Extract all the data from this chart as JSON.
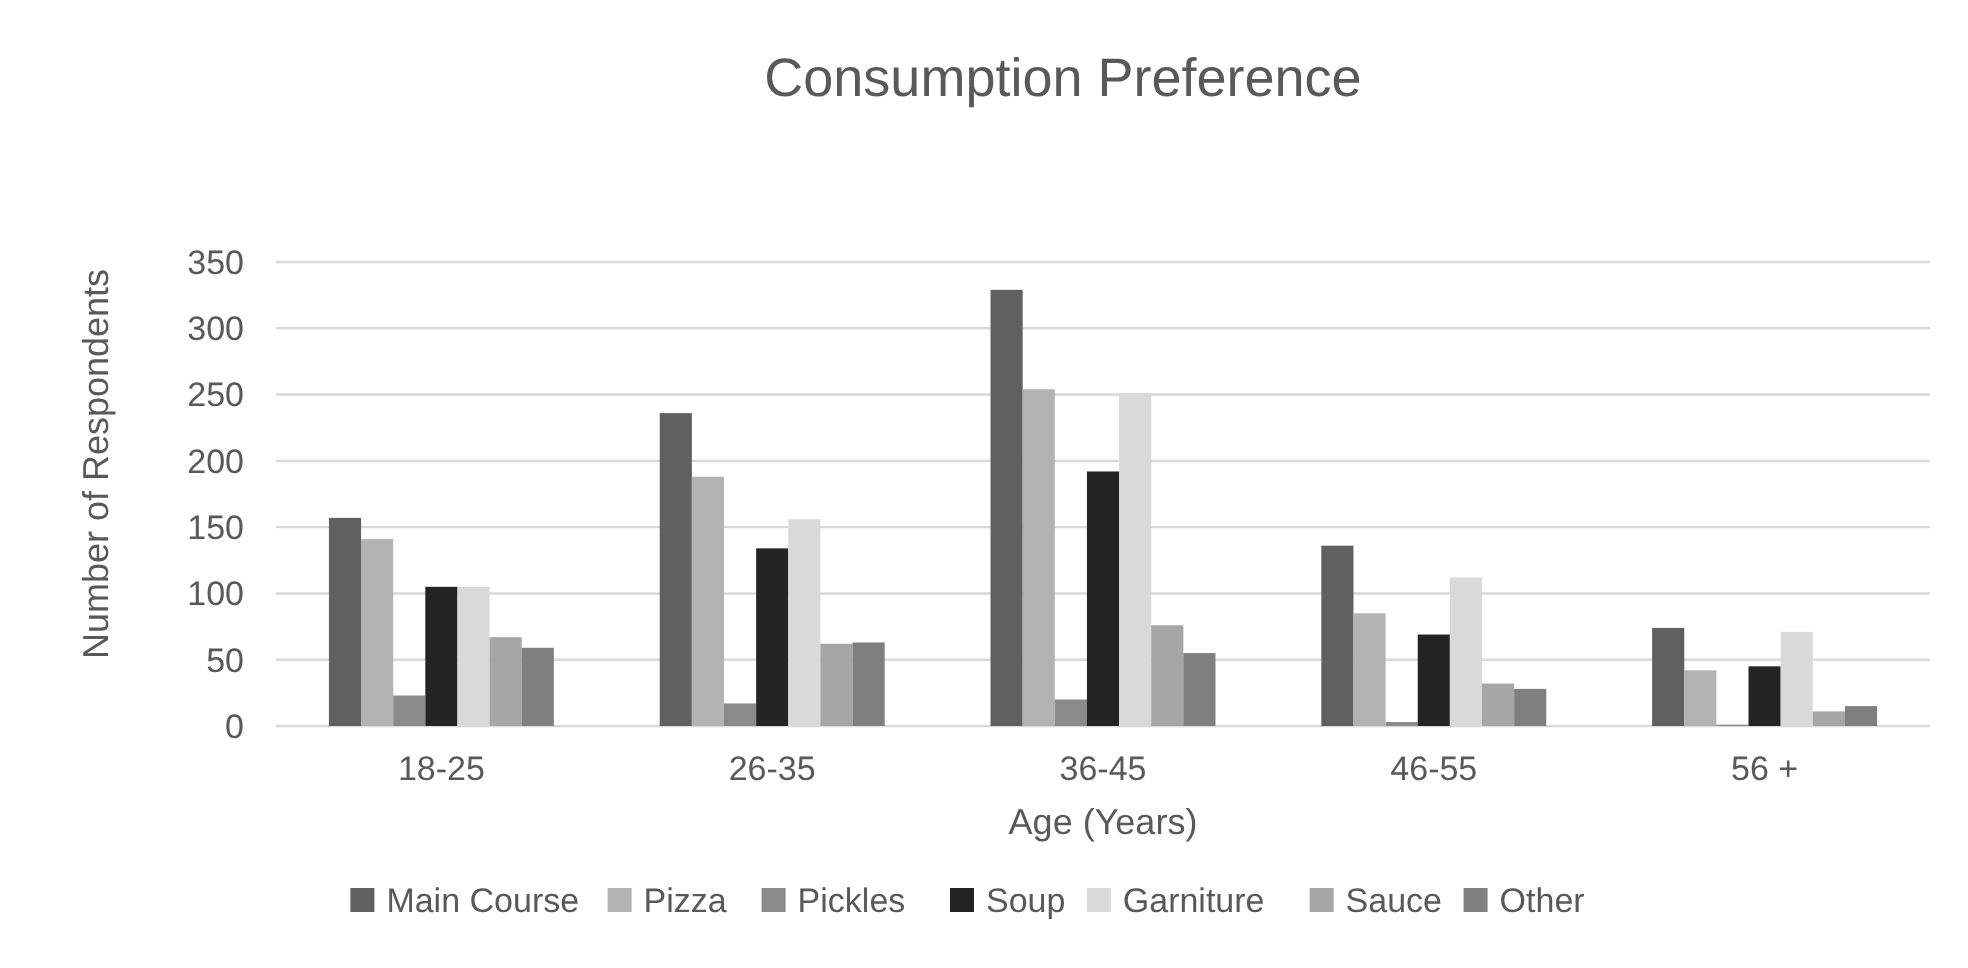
{
  "chart_data": {
    "type": "bar",
    "title": "Consumption Preference",
    "xlabel": "Age (Years)",
    "ylabel": "Number of Respondents",
    "categories": [
      "18-25",
      "26-35",
      "36-45",
      "46-55",
      "56 +"
    ],
    "series": [
      {
        "name": "Main Course",
        "color": "#606060",
        "values": [
          157,
          236,
          329,
          136,
          74
        ]
      },
      {
        "name": "Pizza",
        "color": "#b3b3b3",
        "values": [
          141,
          188,
          254,
          85,
          42
        ]
      },
      {
        "name": "Pickles",
        "color": "#8a8a8a",
        "values": [
          23,
          17,
          20,
          3,
          1
        ]
      },
      {
        "name": "Soup",
        "color": "#232323",
        "values": [
          105,
          134,
          192,
          69,
          45
        ]
      },
      {
        "name": "Garniture",
        "color": "#d9d9d9",
        "values": [
          105,
          156,
          251,
          112,
          71
        ]
      },
      {
        "name": "Sauce",
        "color": "#a6a6a6",
        "values": [
          67,
          62,
          76,
          32,
          11
        ]
      },
      {
        "name": "Other",
        "color": "#7f7f7f",
        "values": [
          59,
          63,
          55,
          28,
          15
        ]
      }
    ],
    "ylim": [
      0,
      350
    ],
    "yticks": [
      0,
      50,
      100,
      150,
      200,
      250,
      300,
      350
    ],
    "grid": "y",
    "legend": "bottom"
  }
}
